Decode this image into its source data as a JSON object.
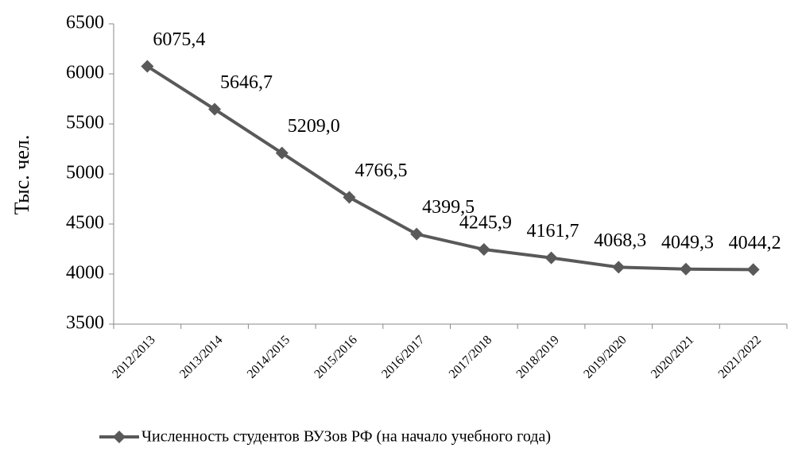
{
  "chart_data": {
    "type": "line",
    "y_label": "Тыс. чел.",
    "categories": [
      "2012/2013",
      "2013/2014",
      "2014/2015",
      "2015/2016",
      "2016/2017",
      "2017/2018",
      "2018/2019",
      "2019/2020",
      "2020/2021",
      "2021/2022"
    ],
    "series": [
      {
        "name": "Численность студентов ВУЗов РФ (на начало учебного года)",
        "color": "#595959",
        "values": [
          6075.4,
          5646.7,
          5209.0,
          4766.5,
          4399.5,
          4245.9,
          4161.7,
          4068.3,
          4049.3,
          4044.2
        ],
        "value_labels": [
          "6075,4",
          "5646,7",
          "5209,0",
          "4766,5",
          "4399,5",
          "4245,9",
          "4161,7",
          "4068,3",
          "4049,3",
          "4044,2"
        ]
      }
    ],
    "ylim": [
      3500,
      6500
    ],
    "yticks": [
      3500,
      4000,
      4500,
      5000,
      5500,
      6000,
      6500
    ],
    "grid": false,
    "legend": "bottom"
  }
}
